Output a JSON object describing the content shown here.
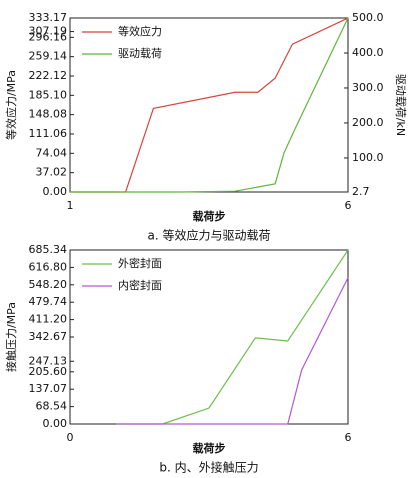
{
  "chart_data": [
    {
      "type": "line",
      "title": "a. 等效应力与驱动载荷",
      "xlabel": "载荷步",
      "ylabel": "等效应力/MPa",
      "y2label": "驱动载荷/kN",
      "xlim": [
        1,
        6
      ],
      "xticks": [
        1,
        6
      ],
      "ylim": [
        0,
        333.17
      ],
      "yticks": [
        {
          "value": 0,
          "label": "0.00"
        },
        37.02,
        74.04,
        111.06,
        148.08,
        {
          "value": 185.1,
          "label": "185.10"
        },
        222.12,
        259.14,
        296.16,
        307.19,
        333.17
      ],
      "y2lim": [
        2.7,
        500
      ],
      "y2ticks": [
        2.7,
        {
          "value": 100,
          "label": "100.0"
        },
        {
          "value": 200,
          "label": "200.0"
        },
        {
          "value": 300,
          "label": "300.0"
        },
        {
          "value": 400,
          "label": "400.0"
        },
        {
          "value": 500,
          "label": "500.0"
        }
      ],
      "legend": "upper left",
      "series": [
        {
          "name": "等效应力",
          "color": "#d9453a",
          "x": [
            1,
            2,
            2.5,
            3.97,
            4.38,
            4.69,
            5.0,
            6
          ],
          "values": [
            0,
            0,
            160,
            191,
            191,
            218,
            283,
            333
          ]
        },
        {
          "name": "驱动载荷",
          "color": "#5cb83a",
          "axis": "y2",
          "x": [
            1,
            2,
            3,
            3.97,
            4.69,
            4.85,
            5.05,
            6
          ],
          "values": [
            2.7,
            2.7,
            2.7,
            5,
            26,
            115,
            184,
            500
          ]
        }
      ]
    },
    {
      "type": "line",
      "title": "b. 内、外接触压力",
      "xlabel": "载荷步",
      "ylabel": "接触压力/MPa",
      "xlim": [
        0,
        6
      ],
      "xticks": [
        0,
        6
      ],
      "ylim": [
        0,
        685.34
      ],
      "yticks": [
        {
          "value": 0,
          "label": "0.00"
        },
        68.54,
        137.07,
        {
          "value": 205.6,
          "label": "205.60"
        },
        247.13,
        342.67,
        {
          "value": 411.2,
          "label": "411.20"
        },
        479.74,
        {
          "value": 548.2,
          "label": "548.20"
        },
        {
          "value": 616.8,
          "label": "616.80"
        },
        685.34
      ],
      "legend": "upper left",
      "series": [
        {
          "name": "外密封面",
          "color": "#6cbf4a",
          "x": [
            1,
            2,
            3,
            4,
            4.7,
            5,
            6
          ],
          "values": [
            0,
            0,
            63,
            339,
            327,
            410,
            685
          ]
        },
        {
          "name": "内密封面",
          "color": "#b15ad0",
          "x": [
            1,
            2,
            3,
            4,
            4.7,
            5,
            6
          ],
          "values": [
            0,
            0,
            0,
            0,
            0,
            213,
            576
          ]
        }
      ]
    }
  ]
}
